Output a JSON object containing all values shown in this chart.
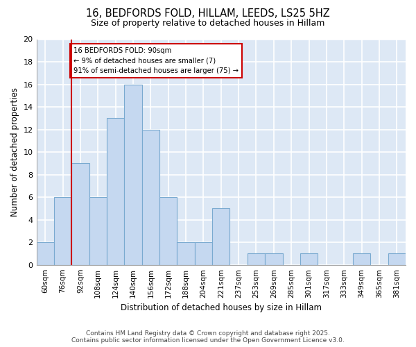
{
  "title_line1": "16, BEDFORDS FOLD, HILLAM, LEEDS, LS25 5HZ",
  "title_line2": "Size of property relative to detached houses in Hillam",
  "xlabel": "Distribution of detached houses by size in Hillam",
  "ylabel": "Number of detached properties",
  "categories": [
    "60sqm",
    "76sqm",
    "92sqm",
    "108sqm",
    "124sqm",
    "140sqm",
    "156sqm",
    "172sqm",
    "188sqm",
    "204sqm",
    "221sqm",
    "237sqm",
    "253sqm",
    "269sqm",
    "285sqm",
    "301sqm",
    "317sqm",
    "333sqm",
    "349sqm",
    "365sqm",
    "381sqm"
  ],
  "values": [
    2,
    6,
    9,
    6,
    13,
    16,
    12,
    6,
    2,
    2,
    5,
    0,
    1,
    1,
    0,
    1,
    0,
    0,
    1,
    0,
    1
  ],
  "bar_color": "#c5d8f0",
  "bar_edge_color": "#7aaad0",
  "background_color": "#dde8f5",
  "grid_color": "#ffffff",
  "fig_background": "#ffffff",
  "ylim": [
    0,
    20
  ],
  "yticks": [
    0,
    2,
    4,
    6,
    8,
    10,
    12,
    14,
    16,
    18,
    20
  ],
  "red_line_index": 2,
  "annotation_text": "16 BEDFORDS FOLD: 90sqm\n← 9% of detached houses are smaller (7)\n91% of semi-detached houses are larger (75) →",
  "annotation_box_color": "#ffffff",
  "annotation_box_edge_color": "#cc0000",
  "footer_line1": "Contains HM Land Registry data © Crown copyright and database right 2025.",
  "footer_line2": "Contains public sector information licensed under the Open Government Licence v3.0."
}
